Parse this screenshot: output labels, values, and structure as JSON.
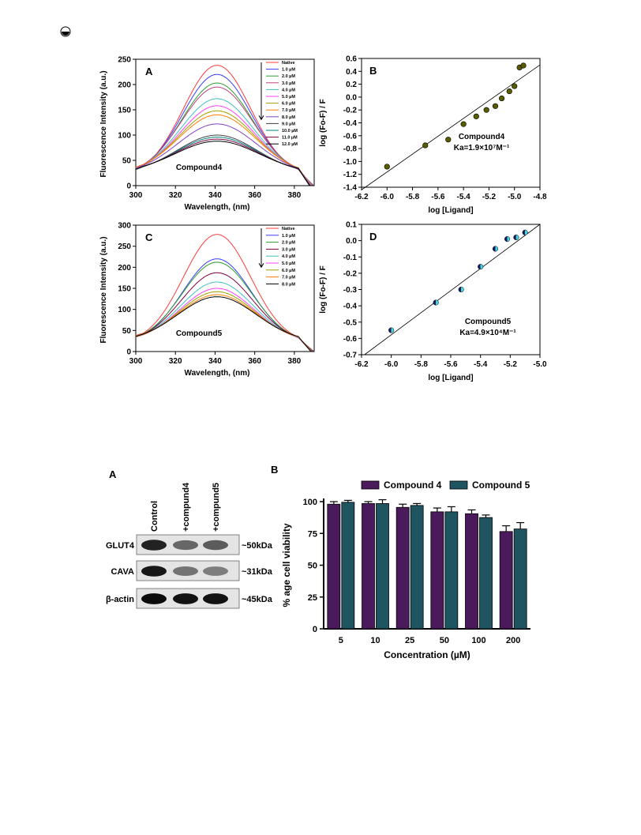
{
  "colors": {
    "compound4_bar": "#4a1a5c",
    "compound5_bar": "#1e5560",
    "marker_c4": "#5a5a00",
    "marker_c5_left": "#1a1a60",
    "marker_c5_right": "#40d8e0"
  },
  "icons": {
    "corner": "circled-half-icon"
  },
  "spectra": [
    {
      "panel": "A",
      "annotation": "Compound4",
      "xlabel": "Wavelength, (nm)",
      "ylabel": "Fluorescence Intensity (a.u.)",
      "xlim": [
        300,
        390
      ],
      "ylim": [
        0,
        250
      ],
      "xticks": [
        300,
        320,
        340,
        360,
        380
      ],
      "yticks": [
        0,
        50,
        100,
        150,
        200,
        250
      ],
      "legend": [
        "Native",
        "1.0 µM",
        "2.0 µM",
        "3.0 µM",
        "4.0 µM",
        "5.0 µM",
        "6.0 µM",
        "7.0 µM",
        "8.0 µM",
        "9.0 µM",
        "10.0 µM",
        "11.0 µM",
        "12.0 µM"
      ],
      "colors": [
        "#ff3b3b",
        "#3b3bff",
        "#2e9e2e",
        "#c04080",
        "#40c0c0",
        "#ff40ff",
        "#a0a000",
        "#ff7f00",
        "#8040c0",
        "#404040",
        "#008080",
        "#800040",
        "#000000"
      ],
      "peaks": [
        238,
        220,
        203,
        195,
        172,
        158,
        148,
        140,
        122,
        100,
        96,
        92,
        88
      ],
      "peak_x": 341
    },
    {
      "panel": "C",
      "annotation": "Compound5",
      "xlabel": "Wavelength, (nm)",
      "ylabel": "Fluorescence Intensity (a.u.)",
      "xlim": [
        300,
        390
      ],
      "ylim": [
        0,
        300
      ],
      "xticks": [
        300,
        320,
        340,
        360,
        380
      ],
      "yticks": [
        0,
        50,
        100,
        150,
        200,
        250,
        300
      ],
      "legend": [
        "Native",
        "1.0 µM",
        "2.0 µM",
        "3.0 µM",
        "4.0 µM",
        "5.0 µM",
        "6.0 µM",
        "7.0 µM",
        "8.0 µM"
      ],
      "colors": [
        "#ff3b3b",
        "#3b3bff",
        "#2e9e2e",
        "#800040",
        "#40c0c0",
        "#ff40ff",
        "#a0a000",
        "#ff7f00",
        "#000000"
      ],
      "peaks": [
        278,
        220,
        212,
        187,
        165,
        150,
        142,
        135,
        130
      ],
      "peak_x": 341
    }
  ],
  "regressions": [
    {
      "panel": "B",
      "xlabel": "log [Ligand]",
      "ylabel": "log (Fo-F) / F",
      "xlim": [
        -6.2,
        -4.8
      ],
      "ylim": [
        -1.4,
        0.6
      ],
      "xticks": [
        -6.2,
        -6.0,
        -5.8,
        -5.6,
        -5.4,
        -5.2,
        -5.0,
        -4.8
      ],
      "yticks": [
        -1.4,
        -1.2,
        -1.0,
        -0.8,
        -0.6,
        -0.4,
        -0.2,
        0.0,
        0.2,
        0.4,
        0.6
      ],
      "annotation": "Compound4",
      "ka_label": "Ka=1.9×10⁷M⁻¹",
      "points_x": [
        -6.0,
        -5.7,
        -5.52,
        -5.4,
        -5.3,
        -5.22,
        -5.15,
        -5.1,
        -5.04,
        -5.0,
        -4.96,
        -4.93
      ],
      "points_y": [
        -1.08,
        -0.75,
        -0.66,
        -0.42,
        -0.3,
        -0.2,
        -0.14,
        -0.02,
        0.09,
        0.17,
        0.46,
        0.49
      ],
      "fit": [
        [
          -6.2,
          -1.44
        ],
        [
          -4.8,
          0.5
        ]
      ]
    },
    {
      "panel": "D",
      "xlabel": "log [Ligand]",
      "ylabel": "log (Fo-F) / F",
      "xlim": [
        -6.2,
        -5.0
      ],
      "ylim": [
        -0.7,
        0.1
      ],
      "xticks": [
        -6.2,
        -6.0,
        -5.8,
        -5.6,
        -5.4,
        -5.2,
        -5.0
      ],
      "yticks": [
        -0.7,
        -0.6,
        -0.5,
        -0.4,
        -0.3,
        -0.2,
        -0.1,
        0.0,
        0.1
      ],
      "annotation": "Compound5",
      "ka_label": "Ka=4.9×10⁴M⁻¹",
      "points_x": [
        -6.0,
        -5.7,
        -5.53,
        -5.4,
        -5.3,
        -5.22,
        -5.16,
        -5.1
      ],
      "points_y": [
        -0.55,
        -0.38,
        -0.3,
        -0.16,
        -0.05,
        0.01,
        0.02,
        0.05
      ],
      "fit": [
        [
          -6.18,
          -0.7
        ],
        [
          -5.0,
          0.1
        ]
      ]
    }
  ],
  "western_blot": {
    "panel": "A",
    "lanes": [
      "Control",
      "+compund4",
      "+compund5"
    ],
    "rows": [
      {
        "label": "GLUT4",
        "size": "~50kDa",
        "intensity": [
          0.85,
          0.55,
          0.6
        ]
      },
      {
        "label": "CAVA",
        "size": "~31kDa",
        "intensity": [
          0.9,
          0.5,
          0.45
        ]
      },
      {
        "label": "β-actin",
        "size": "~45kDa",
        "intensity": [
          0.95,
          0.92,
          0.92
        ]
      }
    ]
  },
  "chart_data": {
    "type": "bar",
    "panel": "B",
    "categories": [
      "5",
      "10",
      "25",
      "50",
      "100",
      "200"
    ],
    "series": [
      {
        "name": "Compound 4",
        "values": [
          98,
          98.5,
          95.5,
          92,
          90.5,
          76.5
        ],
        "errors": [
          2,
          1.5,
          2.5,
          3,
          3,
          4.5
        ]
      },
      {
        "name": "Compound 5",
        "values": [
          99.5,
          98.5,
          97,
          92,
          87.5,
          78.5
        ],
        "errors": [
          1.5,
          3,
          1.5,
          4,
          2,
          5
        ]
      }
    ],
    "xlabel": "Concentration (µM)",
    "ylabel": "% age cell viability",
    "ylim": [
      0,
      100
    ],
    "yticks": [
      0,
      25,
      50,
      75,
      100
    ],
    "legend_position": "top"
  }
}
